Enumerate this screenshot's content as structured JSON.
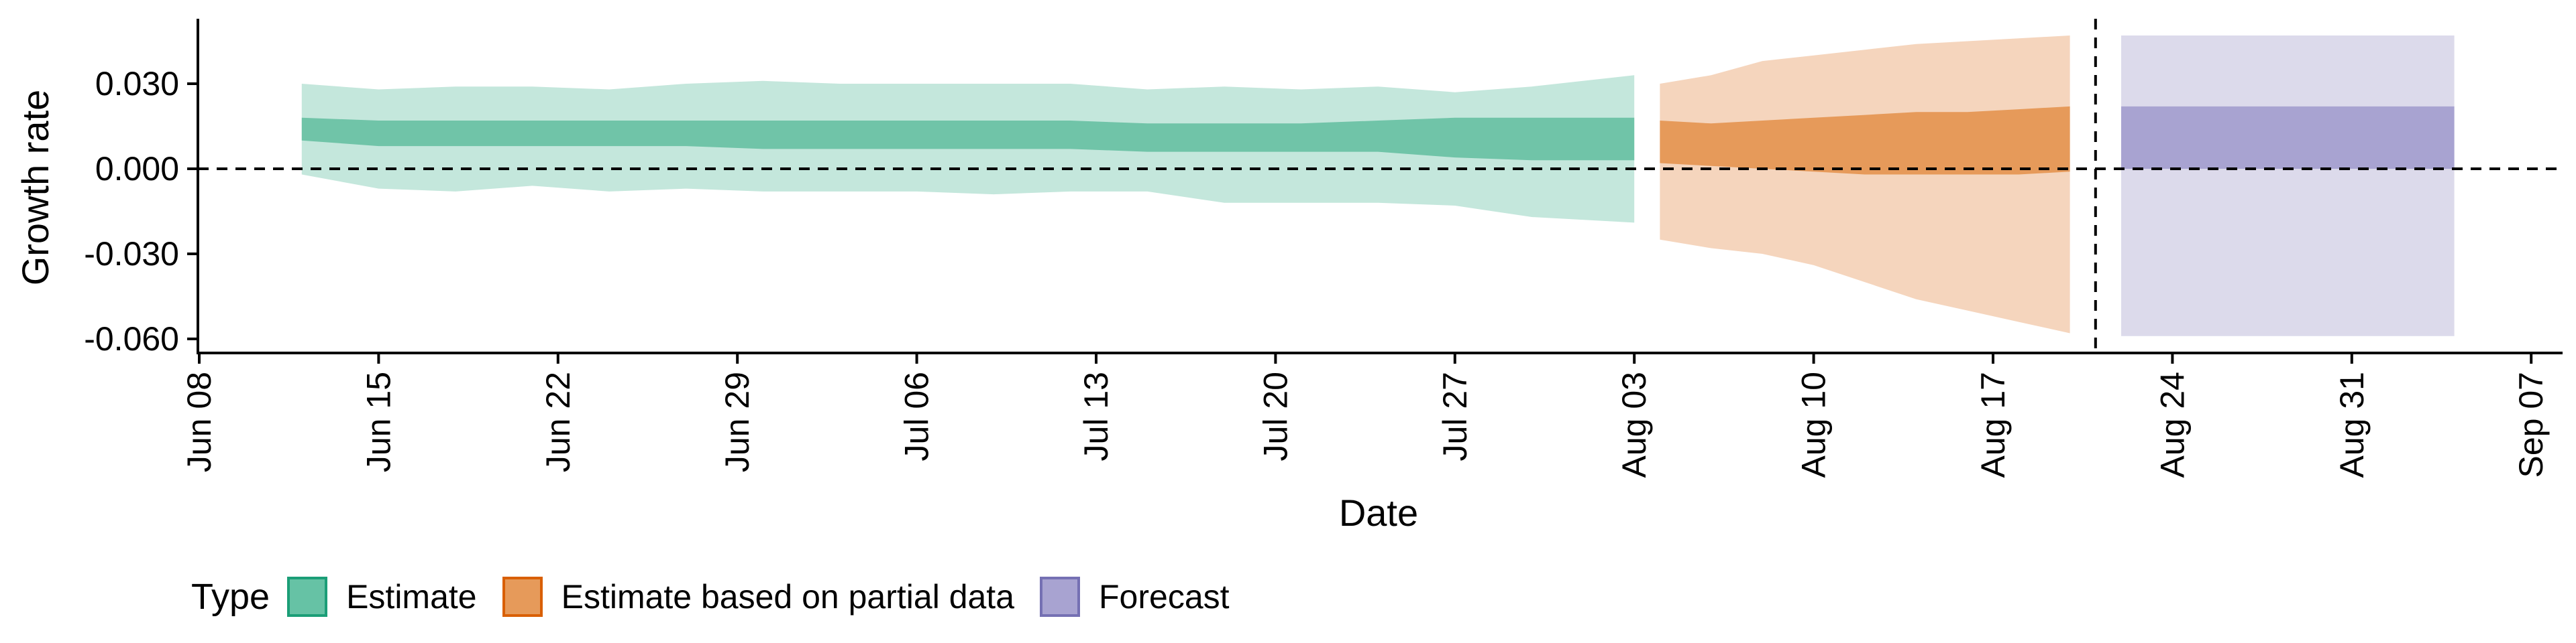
{
  "chart_data": {
    "type": "area",
    "xlabel": "Date",
    "ylabel": "Growth rate",
    "x_range_days": [
      -3,
      88
    ],
    "ylim": [
      -0.065,
      0.053
    ],
    "x_ticks": [
      {
        "day": 0,
        "label": "Jun 08"
      },
      {
        "day": 7,
        "label": "Jun 15"
      },
      {
        "day": 14,
        "label": "Jun 22"
      },
      {
        "day": 21,
        "label": "Jun 29"
      },
      {
        "day": 28,
        "label": "Jul 06"
      },
      {
        "day": 35,
        "label": "Jul 13"
      },
      {
        "day": 42,
        "label": "Jul 20"
      },
      {
        "day": 49,
        "label": "Jul 27"
      },
      {
        "day": 56,
        "label": "Aug 03"
      },
      {
        "day": 63,
        "label": "Aug 10"
      },
      {
        "day": 70,
        "label": "Aug 17"
      },
      {
        "day": 77,
        "label": "Aug 24"
      },
      {
        "day": 84,
        "label": "Aug 31"
      },
      {
        "day": 91,
        "label": "Sep 07"
      }
    ],
    "y_ticks": [
      {
        "value": 0.03,
        "label": "0.030"
      },
      {
        "value": 0.0,
        "label": "0.000"
      },
      {
        "value": -0.03,
        "label": "-0.030"
      },
      {
        "value": -0.06,
        "label": "-0.060"
      }
    ],
    "reference_lines": {
      "horizontal_y": 0.0,
      "vertical_day": 74
    },
    "series": [
      {
        "name": "Estimate",
        "color_fill": "#66c2a5",
        "x": [
          4,
          7,
          10,
          13,
          16,
          19,
          22,
          25,
          28,
          31,
          34,
          37,
          40,
          43,
          46,
          49,
          52,
          56
        ],
        "outer_upper": [
          0.03,
          0.028,
          0.029,
          0.029,
          0.028,
          0.03,
          0.031,
          0.03,
          0.03,
          0.03,
          0.03,
          0.028,
          0.029,
          0.028,
          0.029,
          0.027,
          0.029,
          0.033
        ],
        "outer_lower": [
          -0.002,
          -0.007,
          -0.008,
          -0.006,
          -0.008,
          -0.007,
          -0.008,
          -0.008,
          -0.008,
          -0.009,
          -0.008,
          -0.008,
          -0.012,
          -0.012,
          -0.012,
          -0.013,
          -0.017,
          -0.019
        ],
        "inner_upper": [
          0.018,
          0.017,
          0.017,
          0.017,
          0.017,
          0.017,
          0.017,
          0.017,
          0.017,
          0.017,
          0.017,
          0.016,
          0.016,
          0.016,
          0.017,
          0.018,
          0.018,
          0.018
        ],
        "inner_lower": [
          0.01,
          0.008,
          0.008,
          0.008,
          0.008,
          0.008,
          0.007,
          0.007,
          0.007,
          0.007,
          0.007,
          0.006,
          0.006,
          0.006,
          0.006,
          0.004,
          0.003,
          0.003
        ]
      },
      {
        "name": "Estimate based on partial data",
        "color_fill": "#e69a5a",
        "x": [
          57,
          59,
          61,
          63,
          65,
          67,
          69,
          71,
          73
        ],
        "outer_upper": [
          0.03,
          0.033,
          0.038,
          0.04,
          0.042,
          0.044,
          0.045,
          0.046,
          0.047
        ],
        "outer_lower": [
          -0.025,
          -0.028,
          -0.03,
          -0.034,
          -0.04,
          -0.046,
          -0.05,
          -0.054,
          -0.058
        ],
        "inner_upper": [
          0.017,
          0.016,
          0.017,
          0.018,
          0.019,
          0.02,
          0.02,
          0.021,
          0.022
        ],
        "inner_lower": [
          0.002,
          0.001,
          0.0,
          -0.001,
          -0.002,
          -0.002,
          -0.002,
          -0.002,
          -0.001
        ]
      },
      {
        "name": "Forecast",
        "color_fill": "#a8a3d1",
        "x": [
          75,
          88
        ],
        "outer_upper": [
          0.047,
          0.047
        ],
        "outer_lower": [
          -0.059,
          -0.059
        ],
        "inner_upper": [
          0.022,
          0.022
        ],
        "inner_lower": [
          0.0,
          0.0
        ]
      }
    ]
  },
  "legend": {
    "title": "Type",
    "items": [
      {
        "label": "Estimate",
        "fill": "#66c2a5",
        "border": "#1b9e77"
      },
      {
        "label": "Estimate based on partial data",
        "fill": "#e69a5a",
        "border": "#d95f02"
      },
      {
        "label": "Forecast",
        "fill": "#a8a3d1",
        "border": "#7570b3"
      }
    ]
  },
  "colors": {
    "estimate_outer": "#c4e7dc",
    "estimate_inner": "#70c4a8",
    "partial_outer": "#f5d5bd",
    "partial_inner": "#e69a5a",
    "forecast_outer": "#dcdaeb",
    "forecast_inner": "#a8a3d1"
  }
}
